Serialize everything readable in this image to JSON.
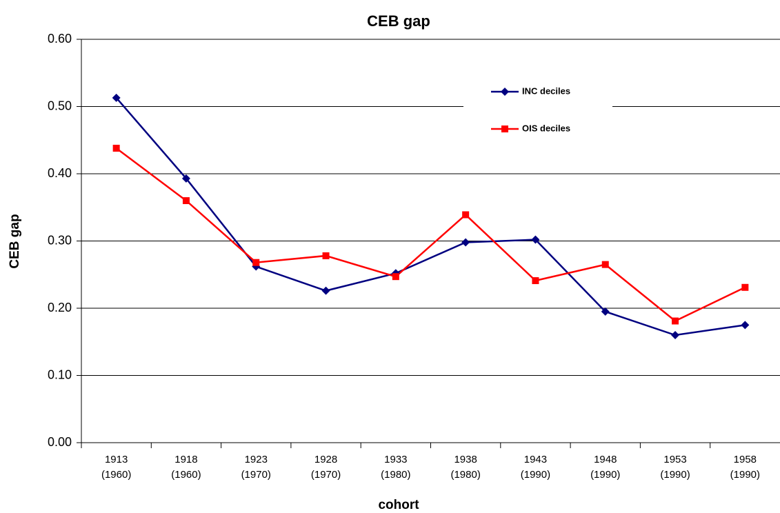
{
  "chart_data": {
    "type": "line",
    "title": "CEB gap",
    "x_label": "cohort",
    "y_label": "CEB gap",
    "categories": [
      "1913 (1960)",
      "1918 (1960)",
      "1923 (1970)",
      "1928 (1970)",
      "1933 (1980)",
      "1938 (1980)",
      "1943 (1990)",
      "1948 (1990)",
      "1953 (1990)",
      "1958 (1990)"
    ],
    "series": [
      {
        "name": "INC deciles",
        "color": "#000080",
        "marker": "diamond",
        "values": [
          0.513,
          0.393,
          0.262,
          0.226,
          0.252,
          0.298,
          0.302,
          0.195,
          0.16,
          0.175
        ]
      },
      {
        "name": "OIS deciles",
        "color": "#ff0000",
        "marker": "square",
        "values": [
          0.438,
          0.36,
          0.268,
          0.278,
          0.247,
          0.339,
          0.241,
          0.265,
          0.181,
          0.231
        ]
      }
    ],
    "ylim": [
      0,
      0.6
    ],
    "yticks": [
      {
        "value": 0,
        "label": "0.00"
      },
      {
        "value": 0.1,
        "label": "0.10"
      },
      {
        "value": 0.2,
        "label": "0.20"
      },
      {
        "value": 0.3,
        "label": "0.30"
      },
      {
        "value": 0.4,
        "label": "0.40"
      },
      {
        "value": 0.5,
        "label": "0.50"
      },
      {
        "value": 0.6,
        "label": "0.60"
      }
    ],
    "grid": true,
    "legend": "upper right"
  }
}
